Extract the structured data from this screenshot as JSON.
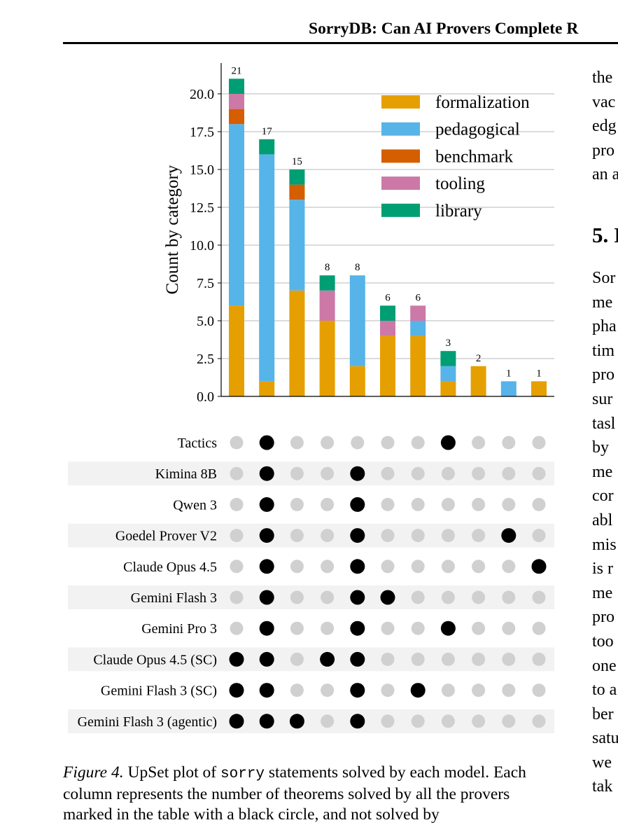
{
  "header": {
    "title": "SorryDB: Can AI Provers Complete R"
  },
  "chart_data": {
    "type": "bar",
    "stacked": true,
    "ylabel": "Count by category",
    "ylim": [
      0,
      22.0
    ],
    "yticks": [
      "0.0",
      "2.5",
      "5.0",
      "7.5",
      "10.0",
      "12.5",
      "15.0",
      "17.5",
      "20.0"
    ],
    "grid": true,
    "legend_position": "top-right",
    "series": [
      {
        "name": "formalization",
        "color": "#E69F00",
        "values": [
          6,
          1,
          7,
          5,
          2,
          4,
          4,
          1,
          2,
          0,
          1
        ]
      },
      {
        "name": "pedagogical",
        "color": "#56B4E9",
        "values": [
          12,
          15,
          6,
          0,
          6,
          0,
          1,
          1,
          0,
          1,
          0
        ]
      },
      {
        "name": "benchmark",
        "color": "#D55E00",
        "values": [
          1,
          0,
          1,
          0,
          0,
          0,
          0,
          0,
          0,
          0,
          0
        ]
      },
      {
        "name": "tooling",
        "color": "#CC79A7",
        "values": [
          1,
          0,
          0,
          2,
          0,
          1,
          1,
          0,
          0,
          0,
          0
        ]
      },
      {
        "name": "library",
        "color": "#009E73",
        "values": [
          1,
          1,
          1,
          1,
          0,
          1,
          0,
          1,
          0,
          0,
          0
        ]
      }
    ],
    "totals": [
      "21",
      "17",
      "15",
      "8",
      "8",
      "6",
      "6",
      "3",
      "2",
      "1",
      "1"
    ],
    "matrix": {
      "models": [
        "Tactics",
        "Kimina 8B",
        "Qwen 3",
        "Goedel Prover V2",
        "Claude Opus 4.5",
        "Gemini Flash 3",
        "Gemini Pro 3",
        "Claude Opus 4.5 (SC)",
        "Gemini Flash 3 (SC)",
        "Gemini Flash 3 (agentic)"
      ],
      "membership": [
        [
          0,
          1,
          0,
          0,
          0,
          0,
          0,
          1,
          0,
          0,
          0
        ],
        [
          0,
          1,
          0,
          0,
          1,
          0,
          0,
          0,
          0,
          0,
          0
        ],
        [
          0,
          1,
          0,
          0,
          1,
          0,
          0,
          0,
          0,
          0,
          0
        ],
        [
          0,
          1,
          0,
          0,
          1,
          0,
          0,
          0,
          0,
          1,
          0
        ],
        [
          0,
          1,
          0,
          0,
          1,
          0,
          0,
          0,
          0,
          0,
          1
        ],
        [
          0,
          1,
          0,
          0,
          1,
          1,
          0,
          0,
          0,
          0,
          0
        ],
        [
          0,
          1,
          0,
          0,
          1,
          0,
          0,
          1,
          0,
          0,
          0
        ],
        [
          1,
          1,
          0,
          1,
          1,
          0,
          0,
          0,
          0,
          0,
          0
        ],
        [
          1,
          1,
          0,
          0,
          1,
          0,
          1,
          0,
          0,
          0,
          0
        ],
        [
          1,
          1,
          1,
          0,
          1,
          0,
          0,
          0,
          0,
          0,
          0
        ]
      ],
      "active_color": "#000000",
      "inactive_color": "#D0D0D0",
      "stripe_color": "#F2F2F2"
    }
  },
  "caption": {
    "label": "Figure 4.",
    "text_before": " UpSet plot of ",
    "code": "sorry",
    "text_after": " statements solved by each model. Each column represents the number of theorems solved by all the provers marked in the table with a black circle, and not solved by"
  },
  "right_column": {
    "lines_top": [
      "the",
      "vac",
      "edg",
      "pro",
      "an a"
    ],
    "section_heading": "5. I",
    "lines_body": [
      "Sor",
      "me",
      "pha",
      "tim",
      "pro",
      "sur",
      "tasl",
      "by",
      "me",
      "cor",
      "abl",
      "mis",
      "is r",
      "me",
      "pro",
      "too",
      "one",
      "to a",
      "ber",
      "satu",
      "we",
      "tak"
    ]
  }
}
